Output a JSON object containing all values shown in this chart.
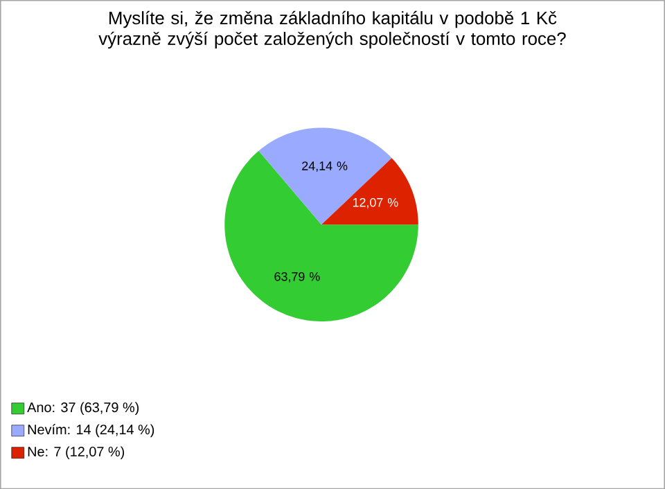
{
  "chart_data": {
    "type": "pie",
    "title": "Myslíte si, že změna základního kapitálu v podobě 1 Kč výrazně zvýší počet založených společností v tomto roce?",
    "categories": [
      "Ano: 37 (63,79 %)",
      "Nevím: 14 (24,14 %)",
      "Ne: 7 (12,07 %)"
    ],
    "values": [
      63.79,
      24.14,
      12.07
    ],
    "value_labels": [
      "63,79 %",
      "24,14 %",
      "12,07 %"
    ],
    "colors": [
      "#33cc33",
      "#99aaff",
      "#dd2200"
    ],
    "legend": "bottom left"
  }
}
